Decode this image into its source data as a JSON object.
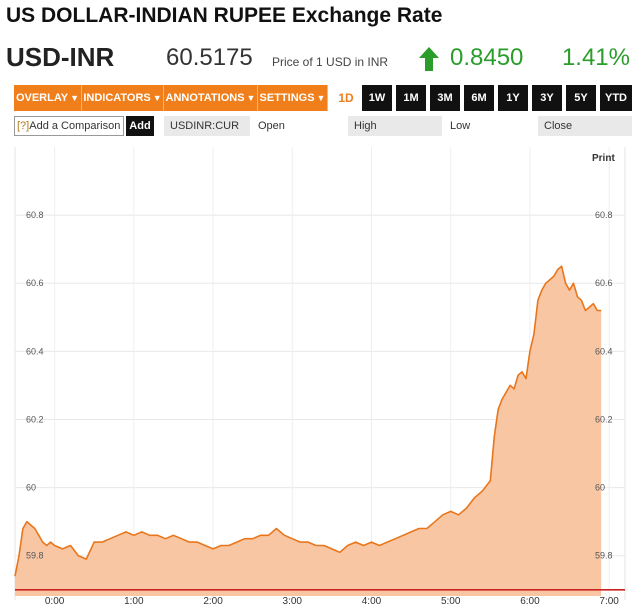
{
  "header": {
    "title": "US DOLLAR-INDIAN RUPEE Exchange Rate",
    "symbol": "USD-INR",
    "price": "60.5175",
    "price_note": "Price of 1 USD in INR",
    "change": "0.8450",
    "change_pct": "1.41%",
    "change_direction": "up",
    "accent_green": "#2a9d2a"
  },
  "toolbar": {
    "menus": [
      {
        "label": "OVERLAY"
      },
      {
        "label": "INDICATORS"
      },
      {
        "label": "ANNOTATIONS"
      },
      {
        "label": "SETTINGS"
      }
    ],
    "active_range": "1D",
    "ranges": [
      "1W",
      "1M",
      "3M",
      "6M",
      "1Y",
      "3Y",
      "5Y",
      "YTD"
    ],
    "accent_orange": "#f07e1a"
  },
  "comparison": {
    "input_prefix": "[?]",
    "input_text": "Add a Comparison",
    "add_label": "Add",
    "ticker": "USDINR:CUR",
    "open_label": "Open",
    "high_label": "High",
    "low_label": "Low",
    "close_label": "Close"
  },
  "chart_controls": {
    "print_label": "Print"
  },
  "chart_data": {
    "type": "area",
    "x_tick_labels": [
      "0:00",
      "1:00",
      "2:00",
      "3:00",
      "4:00",
      "5:00",
      "6:00",
      "7:00"
    ],
    "y_tick_labels": [
      "59.8",
      "60",
      "60.2",
      "60.4",
      "60.6",
      "60.8"
    ],
    "xlim": [
      -0.5,
      7.2
    ],
    "ylim": [
      59.67,
      61.0
    ],
    "reference_line": 59.7,
    "reference_line_color": "#cc2222",
    "fill_color": "#f9c6a4",
    "line_color": "#e8761c",
    "grid": true,
    "series": [
      {
        "x": [
          -0.5,
          -0.45,
          -0.4,
          -0.35,
          -0.3,
          -0.25,
          -0.2,
          -0.15,
          -0.1,
          -0.05,
          0.0,
          0.1,
          0.2,
          0.3,
          0.4,
          0.5,
          0.6,
          0.7,
          0.8,
          0.9,
          1.0,
          1.1,
          1.2,
          1.3,
          1.4,
          1.5,
          1.6,
          1.7,
          1.8,
          1.9,
          2.0,
          2.1,
          2.2,
          2.3,
          2.4,
          2.5,
          2.6,
          2.7,
          2.8,
          2.9,
          3.0,
          3.1,
          3.2,
          3.3,
          3.4,
          3.5,
          3.6,
          3.7,
          3.8,
          3.9,
          4.0,
          4.1,
          4.2,
          4.3,
          4.4,
          4.5,
          4.6,
          4.7,
          4.8,
          4.9,
          5.0,
          5.1,
          5.2,
          5.3,
          5.4,
          5.5,
          5.55,
          5.6,
          5.65,
          5.7,
          5.75,
          5.8,
          5.85,
          5.9,
          5.95,
          6.0,
          6.05,
          6.1,
          6.15,
          6.2,
          6.25,
          6.3,
          6.35,
          6.4,
          6.45,
          6.5,
          6.55,
          6.6,
          6.65,
          6.7,
          6.75,
          6.8,
          6.85,
          6.9
        ],
        "y": [
          59.74,
          59.8,
          59.88,
          59.9,
          59.89,
          59.88,
          59.86,
          59.84,
          59.83,
          59.84,
          59.83,
          59.82,
          59.83,
          59.8,
          59.79,
          59.84,
          59.84,
          59.85,
          59.86,
          59.87,
          59.86,
          59.87,
          59.86,
          59.86,
          59.85,
          59.86,
          59.85,
          59.84,
          59.84,
          59.83,
          59.82,
          59.83,
          59.83,
          59.84,
          59.85,
          59.85,
          59.86,
          59.86,
          59.88,
          59.86,
          59.85,
          59.84,
          59.84,
          59.83,
          59.83,
          59.82,
          59.81,
          59.83,
          59.84,
          59.83,
          59.84,
          59.83,
          59.84,
          59.85,
          59.86,
          59.87,
          59.88,
          59.88,
          59.9,
          59.92,
          59.93,
          59.92,
          59.94,
          59.97,
          59.99,
          60.02,
          60.15,
          60.23,
          60.26,
          60.28,
          60.3,
          60.29,
          60.33,
          60.34,
          60.32,
          60.4,
          60.45,
          60.55,
          60.58,
          60.6,
          60.61,
          60.62,
          60.64,
          60.65,
          60.6,
          60.58,
          60.6,
          60.56,
          60.55,
          60.52,
          60.53,
          60.54,
          60.52,
          60.52
        ]
      }
    ]
  }
}
